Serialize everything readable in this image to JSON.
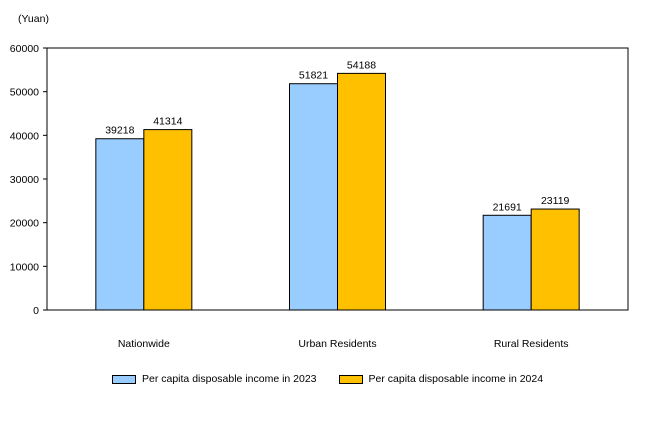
{
  "chart_data": {
    "type": "bar",
    "ylabel": "(Yuan)",
    "categories": [
      "Nationwide",
      "Urban Residents",
      "Rural Residents"
    ],
    "series": [
      {
        "name": "Per capita disposable income in 2023",
        "values": [
          39218,
          51821,
          21691
        ],
        "color": "#99CCFF"
      },
      {
        "name": "Per capita disposable income in 2024",
        "values": [
          41314,
          54188,
          23119
        ],
        "color": "#FFC000"
      }
    ],
    "ylim": [
      0,
      60000
    ],
    "yticks": [
      "0",
      "10000",
      "20000",
      "30000",
      "40000",
      "50000",
      "60000"
    ],
    "grid": false,
    "legend_position": "bottom"
  }
}
